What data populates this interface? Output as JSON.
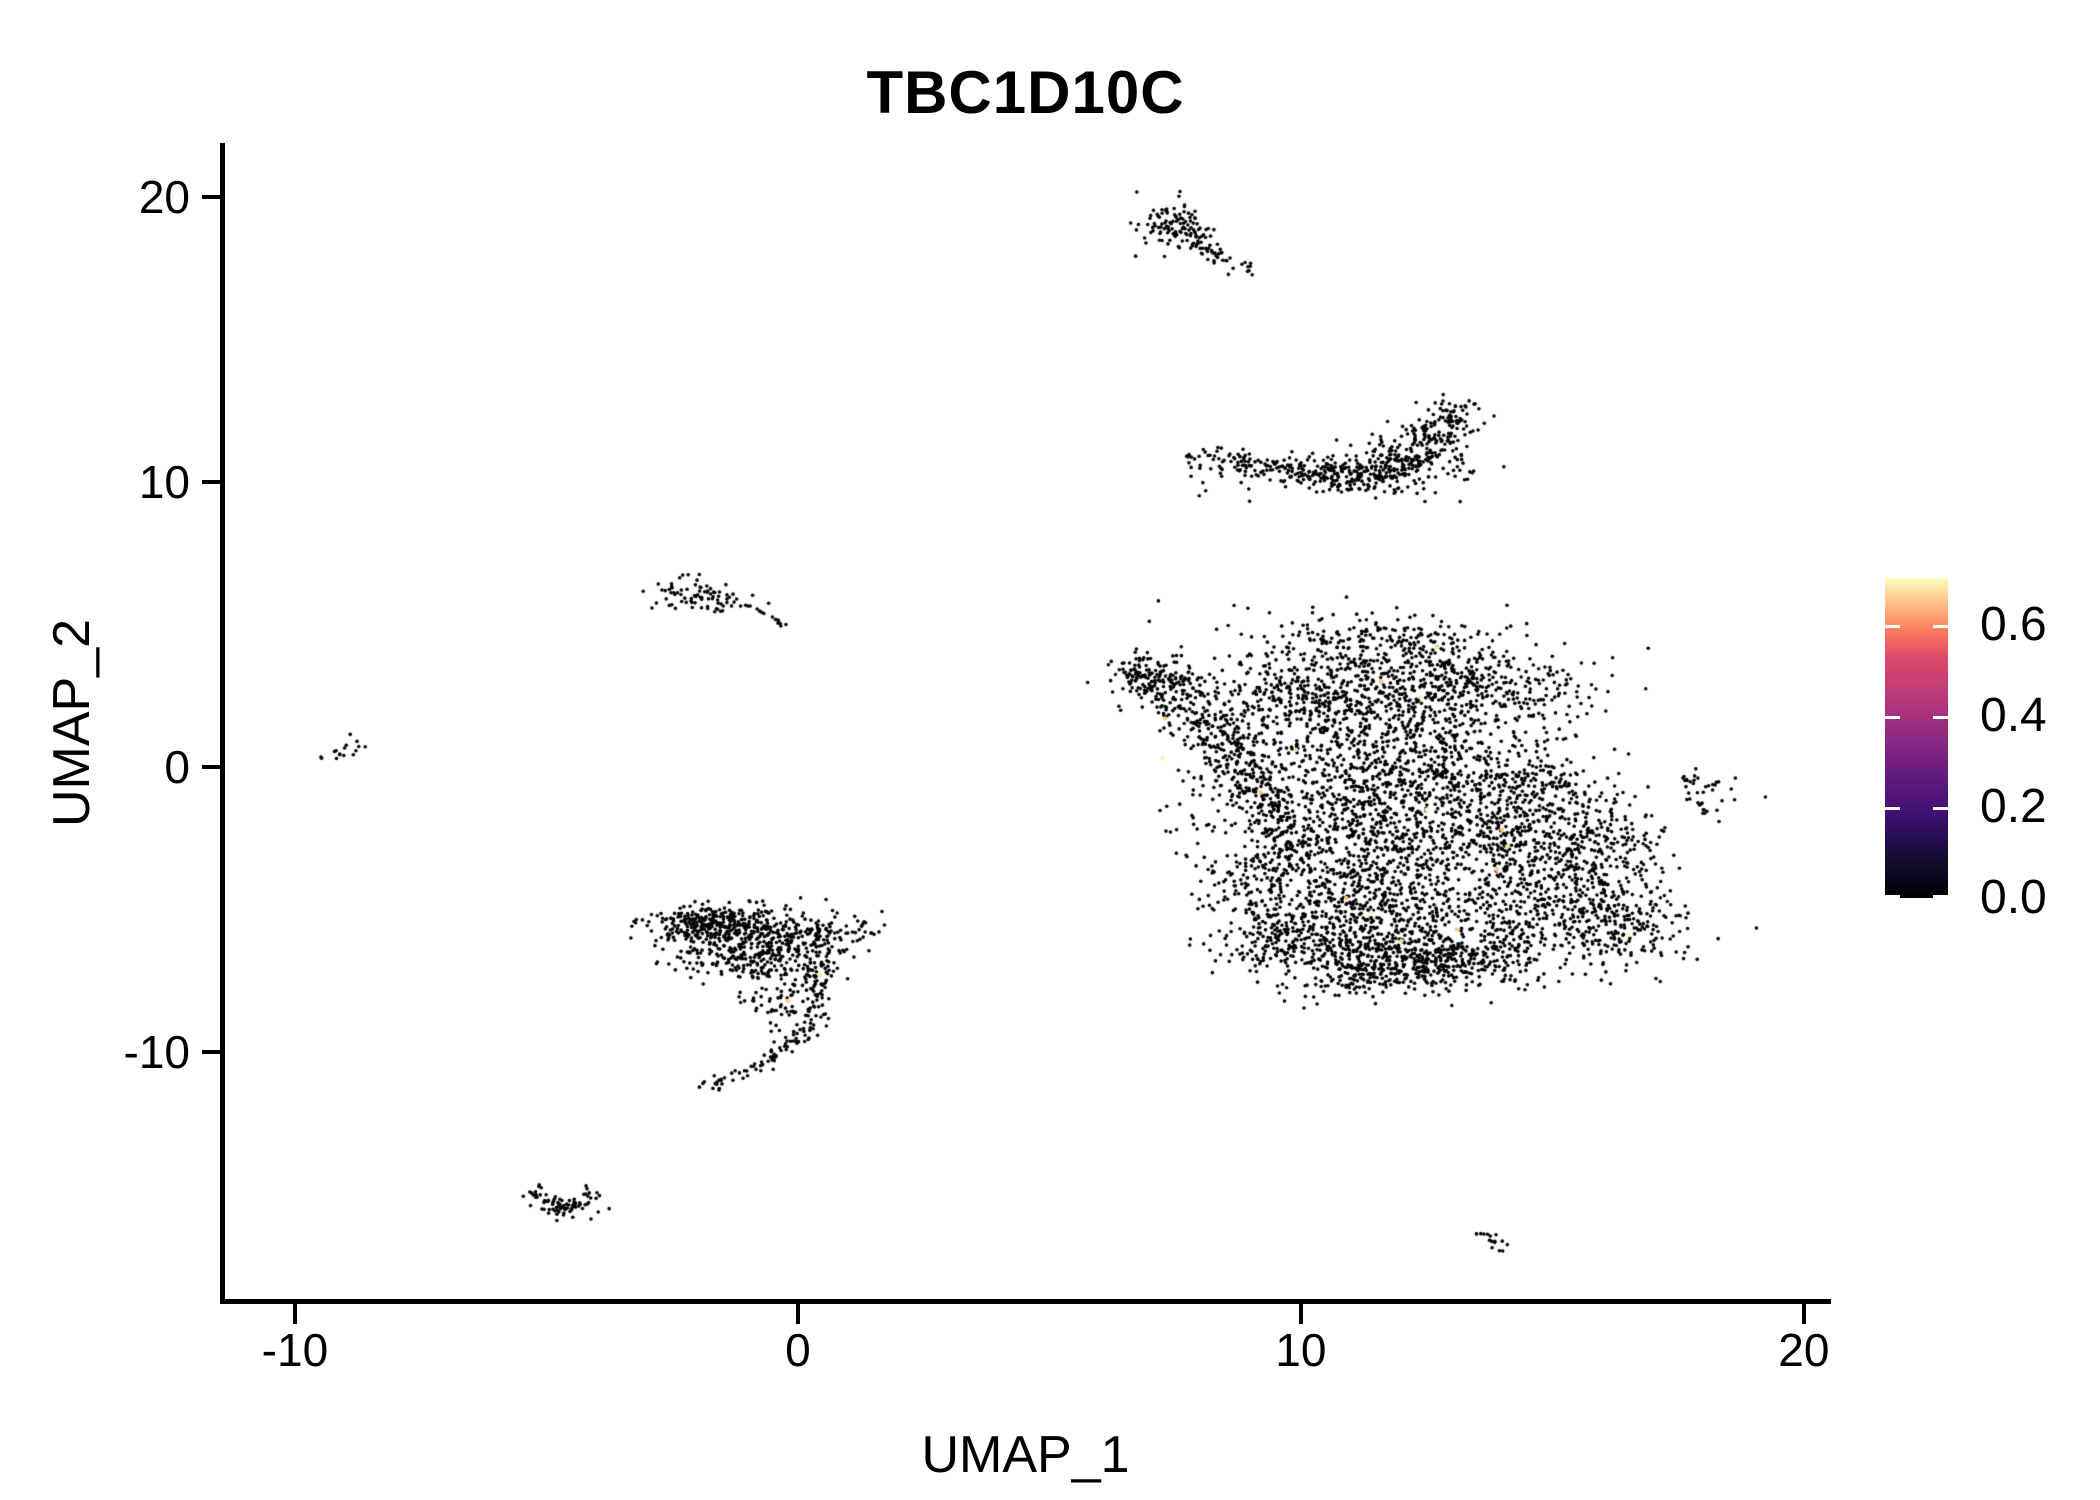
{
  "chart_data": {
    "type": "scatter",
    "title": "TBC1D10C",
    "xlabel": "UMAP_1",
    "ylabel": "UMAP_2",
    "xlim": [
      -11.45,
      20.5
    ],
    "ylim": [
      -18.77,
      21.82
    ],
    "x_ticks": {
      "values": [
        -10,
        0,
        10,
        20
      ],
      "labels": [
        "-10",
        "0",
        "10",
        "20"
      ]
    },
    "y_ticks": {
      "values": [
        -10,
        0,
        10,
        20
      ],
      "labels": [
        "-10",
        "0",
        "10",
        "20"
      ]
    },
    "grid": false,
    "point_color_default_value": 0.0,
    "point_radius_px": 1.8,
    "highlight_radius_px": 2.3,
    "colorbar": {
      "position": "right",
      "domain": [
        0.0,
        0.703
      ],
      "ticks": {
        "values": [
          0.0,
          0.2,
          0.4,
          0.6
        ],
        "labels": [
          "0.0",
          "0.2",
          "0.4",
          "0.6"
        ]
      },
      "colormap": "magma",
      "stops": [
        [
          0.0,
          "#000004"
        ],
        [
          0.13,
          "#140e36"
        ],
        [
          0.25,
          "#3b0f70"
        ],
        [
          0.38,
          "#641a80"
        ],
        [
          0.5,
          "#8c2981"
        ],
        [
          0.62,
          "#b73779"
        ],
        [
          0.75,
          "#de4968"
        ],
        [
          0.82,
          "#f7705c"
        ],
        [
          0.88,
          "#fe9f6d"
        ],
        [
          0.94,
          "#fecf92"
        ],
        [
          1.0,
          "#fcfdbf"
        ]
      ]
    },
    "encoding": "procedural-clusters (distribution read from pixels; gauss=[cx,cy,rx,ry,n,rot], uniform=[cx,cy,rx,ry,n], path={pts,w,n})",
    "clusters": [
      {
        "name": "main-top-lobe",
        "type": "gauss",
        "p": [
          11.6,
          3.4,
          1.9,
          0.9,
          550,
          -8
        ]
      },
      {
        "name": "main-top-left",
        "type": "gauss",
        "p": [
          9.9,
          2.3,
          0.9,
          0.7,
          200,
          0
        ]
      },
      {
        "name": "main-top-right",
        "type": "gauss",
        "p": [
          13.3,
          2.6,
          1.1,
          0.8,
          260,
          0
        ]
      },
      {
        "name": "main-arm-tip",
        "type": "gauss",
        "p": [
          6.65,
          3.35,
          0.25,
          0.3,
          35,
          0
        ]
      },
      {
        "name": "main-arm-upper",
        "type": "gauss",
        "p": [
          7.15,
          2.9,
          0.4,
          0.5,
          70,
          0
        ]
      },
      {
        "name": "main-left-arm",
        "type": "path",
        "pts": [
          [
            6.9,
            3.3
          ],
          [
            7.6,
            2.4
          ],
          [
            8.3,
            1.3
          ],
          [
            8.8,
            0.2
          ],
          [
            9.2,
            -0.9
          ],
          [
            9.5,
            -2.2
          ],
          [
            9.8,
            -3.3
          ]
        ],
        "w": 0.4,
        "n": 520
      },
      {
        "name": "main-mid-1",
        "type": "gauss",
        "p": [
          11.2,
          0.9,
          1.1,
          0.9,
          240,
          0
        ]
      },
      {
        "name": "main-mid-2",
        "type": "gauss",
        "p": [
          12.6,
          -0.1,
          1.15,
          0.95,
          280,
          0
        ]
      },
      {
        "name": "main-mid-3",
        "type": "gauss",
        "p": [
          10.9,
          -1.6,
          0.9,
          0.85,
          220,
          0
        ]
      },
      {
        "name": "main-mid-4",
        "type": "gauss",
        "p": [
          12.3,
          -2.7,
          1.2,
          1.0,
          320,
          0
        ]
      },
      {
        "name": "main-mid-5",
        "type": "gauss",
        "p": [
          13.9,
          -1.8,
          0.85,
          1.05,
          230,
          0
        ]
      },
      {
        "name": "main-right-1",
        "type": "gauss",
        "p": [
          14.9,
          -0.8,
          0.5,
          0.55,
          80,
          0
        ]
      },
      {
        "name": "main-right-2",
        "type": "gauss",
        "p": [
          15.3,
          -3.4,
          0.85,
          0.95,
          190,
          0
        ]
      },
      {
        "name": "main-right-3",
        "type": "gauss",
        "p": [
          16.2,
          -2.6,
          0.5,
          0.8,
          90,
          0
        ]
      },
      {
        "name": "main-right-4",
        "type": "gauss",
        "p": [
          14.6,
          -5.0,
          0.9,
          0.85,
          170,
          0
        ]
      },
      {
        "name": "main-right-tip",
        "type": "gauss",
        "p": [
          16.3,
          -5.8,
          0.8,
          0.7,
          170,
          0
        ]
      },
      {
        "name": "main-right-tip2",
        "type": "gauss",
        "p": [
          16.8,
          -5.0,
          0.45,
          0.6,
          50,
          0
        ]
      },
      {
        "name": "main-right-speckle",
        "type": "uniform",
        "p": [
          15.6,
          -4.4,
          0.9,
          0.9,
          60
        ]
      },
      {
        "name": "main-bottom-1",
        "type": "gauss",
        "p": [
          10.9,
          -4.4,
          1.0,
          0.85,
          240,
          0
        ]
      },
      {
        "name": "main-bottom-2",
        "type": "gauss",
        "p": [
          12.4,
          -5.5,
          1.0,
          0.8,
          240,
          0
        ]
      },
      {
        "name": "main-bottom-3",
        "type": "gauss",
        "p": [
          10.8,
          -6.4,
          1.2,
          0.75,
          330,
          0
        ]
      },
      {
        "name": "main-bottom-4",
        "type": "gauss",
        "p": [
          12.1,
          -7.0,
          0.9,
          0.5,
          200,
          0
        ]
      },
      {
        "name": "main-bottom-5",
        "type": "gauss",
        "p": [
          13.5,
          -6.7,
          0.8,
          0.55,
          170,
          0
        ]
      },
      {
        "name": "main-bottom-tip",
        "type": "gauss",
        "p": [
          11.1,
          -7.5,
          0.4,
          0.3,
          50,
          0
        ]
      },
      {
        "name": "main-bottom-left1",
        "type": "gauss",
        "p": [
          9.7,
          -5.9,
          0.6,
          0.6,
          120,
          0
        ]
      },
      {
        "name": "main-bottom-left2",
        "type": "gauss",
        "p": [
          8.9,
          -4.3,
          0.45,
          0.55,
          70,
          0
        ]
      },
      {
        "name": "main-speckle",
        "type": "uniform",
        "p": [
          11.9,
          -1.6,
          4.8,
          3.6,
          420
        ]
      },
      {
        "name": "main-top-speckle",
        "type": "uniform",
        "p": [
          11.8,
          4.5,
          1.5,
          0.45,
          60
        ]
      },
      {
        "name": "comet-head",
        "type": "gauss",
        "p": [
          7.55,
          18.9,
          0.38,
          0.42,
          110,
          0
        ]
      },
      {
        "name": "comet-tail",
        "type": "path",
        "pts": [
          [
            7.8,
            18.55
          ],
          [
            8.25,
            18.05
          ],
          [
            8.7,
            17.6
          ],
          [
            9.0,
            17.35
          ]
        ],
        "w": 0.13,
        "n": 45
      },
      {
        "name": "comet-outliers",
        "type": "gauss",
        "p": [
          7.1,
          19.4,
          0.12,
          0.1,
          6,
          0
        ]
      },
      {
        "name": "crescent-band",
        "type": "path",
        "pts": [
          [
            8.0,
            10.75
          ],
          [
            8.8,
            10.55
          ],
          [
            9.6,
            10.4
          ],
          [
            10.4,
            10.25
          ],
          [
            11.2,
            10.3
          ],
          [
            11.9,
            10.55
          ],
          [
            12.5,
            11.2
          ],
          [
            12.9,
            11.9
          ],
          [
            13.15,
            12.7
          ]
        ],
        "w": 0.24,
        "n": 300
      },
      {
        "name": "crescent-mid",
        "type": "gauss",
        "p": [
          10.6,
          10.3,
          1.0,
          0.4,
          140,
          0
        ]
      },
      {
        "name": "crescent-right",
        "type": "gauss",
        "p": [
          11.8,
          10.6,
          0.7,
          0.45,
          120,
          0
        ]
      },
      {
        "name": "crescent-upturn",
        "type": "gauss",
        "p": [
          12.6,
          11.6,
          0.4,
          0.5,
          80,
          0
        ]
      },
      {
        "name": "left-small",
        "type": "gauss",
        "p": [
          -1.9,
          5.95,
          0.5,
          0.28,
          85,
          -12
        ]
      },
      {
        "name": "left-small-dot",
        "type": "gauss",
        "p": [
          -0.7,
          5.4,
          0.07,
          0.07,
          4,
          0
        ]
      },
      {
        "name": "left-small-streak",
        "type": "path",
        "pts": [
          [
            -0.5,
            5.25
          ],
          [
            -0.2,
            4.95
          ]
        ],
        "w": 0.07,
        "n": 8
      },
      {
        "name": "far-left-tiny",
        "type": "gauss",
        "p": [
          -9.0,
          0.55,
          0.22,
          0.16,
          16,
          25
        ]
      },
      {
        "name": "right-small",
        "type": "gauss",
        "p": [
          18.05,
          -0.9,
          0.3,
          0.35,
          28,
          0
        ]
      },
      {
        "name": "right-small-streak",
        "type": "path",
        "pts": [
          [
            17.5,
            -0.35
          ],
          [
            17.9,
            -0.6
          ]
        ],
        "w": 0.09,
        "n": 8
      },
      {
        "name": "right-small-dot",
        "type": "gauss",
        "p": [
          17.95,
          -1.55,
          0.08,
          0.08,
          4,
          0
        ]
      },
      {
        "name": "leftbig-top1",
        "type": "gauss",
        "p": [
          -1.7,
          -5.6,
          0.65,
          0.4,
          200,
          0
        ]
      },
      {
        "name": "leftbig-topstripe",
        "type": "gauss",
        "p": [
          -1.8,
          -5.35,
          0.55,
          0.18,
          90,
          0
        ]
      },
      {
        "name": "leftbig-top2",
        "type": "gauss",
        "p": [
          -0.6,
          -5.8,
          0.7,
          0.45,
          160,
          0
        ]
      },
      {
        "name": "leftbig-right",
        "type": "gauss",
        "p": [
          0.3,
          -6.1,
          0.5,
          0.45,
          90,
          0
        ]
      },
      {
        "name": "leftbig-low1",
        "type": "gauss",
        "p": [
          -1.3,
          -6.6,
          0.7,
          0.4,
          140,
          0
        ]
      },
      {
        "name": "leftbig-low2",
        "type": "gauss",
        "p": [
          -0.2,
          -6.9,
          0.6,
          0.45,
          90,
          0
        ]
      },
      {
        "name": "leftbig-speckle",
        "type": "uniform",
        "p": [
          -0.3,
          -7.8,
          1.0,
          0.9,
          70
        ]
      },
      {
        "name": "leftbig-fringe",
        "type": "gauss",
        "p": [
          1.2,
          -5.6,
          0.25,
          0.3,
          12,
          0
        ]
      },
      {
        "name": "leftbig-hook",
        "type": "path",
        "pts": [
          [
            0.55,
            -6.9
          ],
          [
            0.5,
            -7.9
          ],
          [
            0.3,
            -8.8
          ],
          [
            -0.05,
            -9.6
          ],
          [
            -0.6,
            -10.3
          ],
          [
            -1.25,
            -10.85
          ],
          [
            -1.8,
            -11.25
          ]
        ],
        "w": 0.13,
        "n": 115
      },
      {
        "name": "leftbig-hook-speckle",
        "type": "uniform",
        "p": [
          0.0,
          -9.0,
          0.7,
          0.8,
          18
        ]
      },
      {
        "name": "bottomleft-v",
        "type": "path",
        "pts": [
          [
            -5.3,
            -14.85
          ],
          [
            -5.0,
            -15.2
          ],
          [
            -4.7,
            -15.6
          ],
          [
            -4.45,
            -15.35
          ],
          [
            -4.2,
            -15.05
          ],
          [
            -4.0,
            -14.9
          ]
        ],
        "w": 0.12,
        "n": 60
      },
      {
        "name": "bottomleft-core",
        "type": "gauss",
        "p": [
          -4.65,
          -15.5,
          0.3,
          0.18,
          30,
          0
        ]
      },
      {
        "name": "bottomright-streak",
        "type": "path",
        "pts": [
          [
            13.5,
            -16.3
          ],
          [
            13.75,
            -16.55
          ],
          [
            14.05,
            -16.9
          ]
        ],
        "w": 0.09,
        "n": 16
      }
    ],
    "highlights": [
      {
        "x": 12.7,
        "y": 4.2,
        "value": 0.68
      },
      {
        "x": 11.6,
        "y": 3.0,
        "value": 0.65
      },
      {
        "x": 12.4,
        "y": 2.4,
        "value": 0.7
      },
      {
        "x": 7.3,
        "y": 1.7,
        "value": 0.66
      },
      {
        "x": 7.25,
        "y": 0.3,
        "value": 0.69
      },
      {
        "x": 9.9,
        "y": 0.6,
        "value": 0.67
      },
      {
        "x": 9.2,
        "y": -0.9,
        "value": 0.65
      },
      {
        "x": 12.5,
        "y": -1.5,
        "value": 0.7
      },
      {
        "x": 14.0,
        "y": -2.2,
        "value": 0.66
      },
      {
        "x": 14.1,
        "y": -2.8,
        "value": 0.68
      },
      {
        "x": 13.9,
        "y": -3.6,
        "value": 0.65
      },
      {
        "x": 11.4,
        "y": -5.1,
        "value": 0.69
      },
      {
        "x": 12.0,
        "y": -6.1,
        "value": 0.67
      },
      {
        "x": 13.1,
        "y": -5.7,
        "value": 0.66
      },
      {
        "x": 16.5,
        "y": -5.9,
        "value": 0.7
      },
      {
        "x": 10.9,
        "y": -4.6,
        "value": 0.65
      },
      {
        "x": 0.44,
        "y": -7.3,
        "value": 0.68
      },
      {
        "x": -0.2,
        "y": -8.2,
        "value": 0.66
      }
    ]
  }
}
